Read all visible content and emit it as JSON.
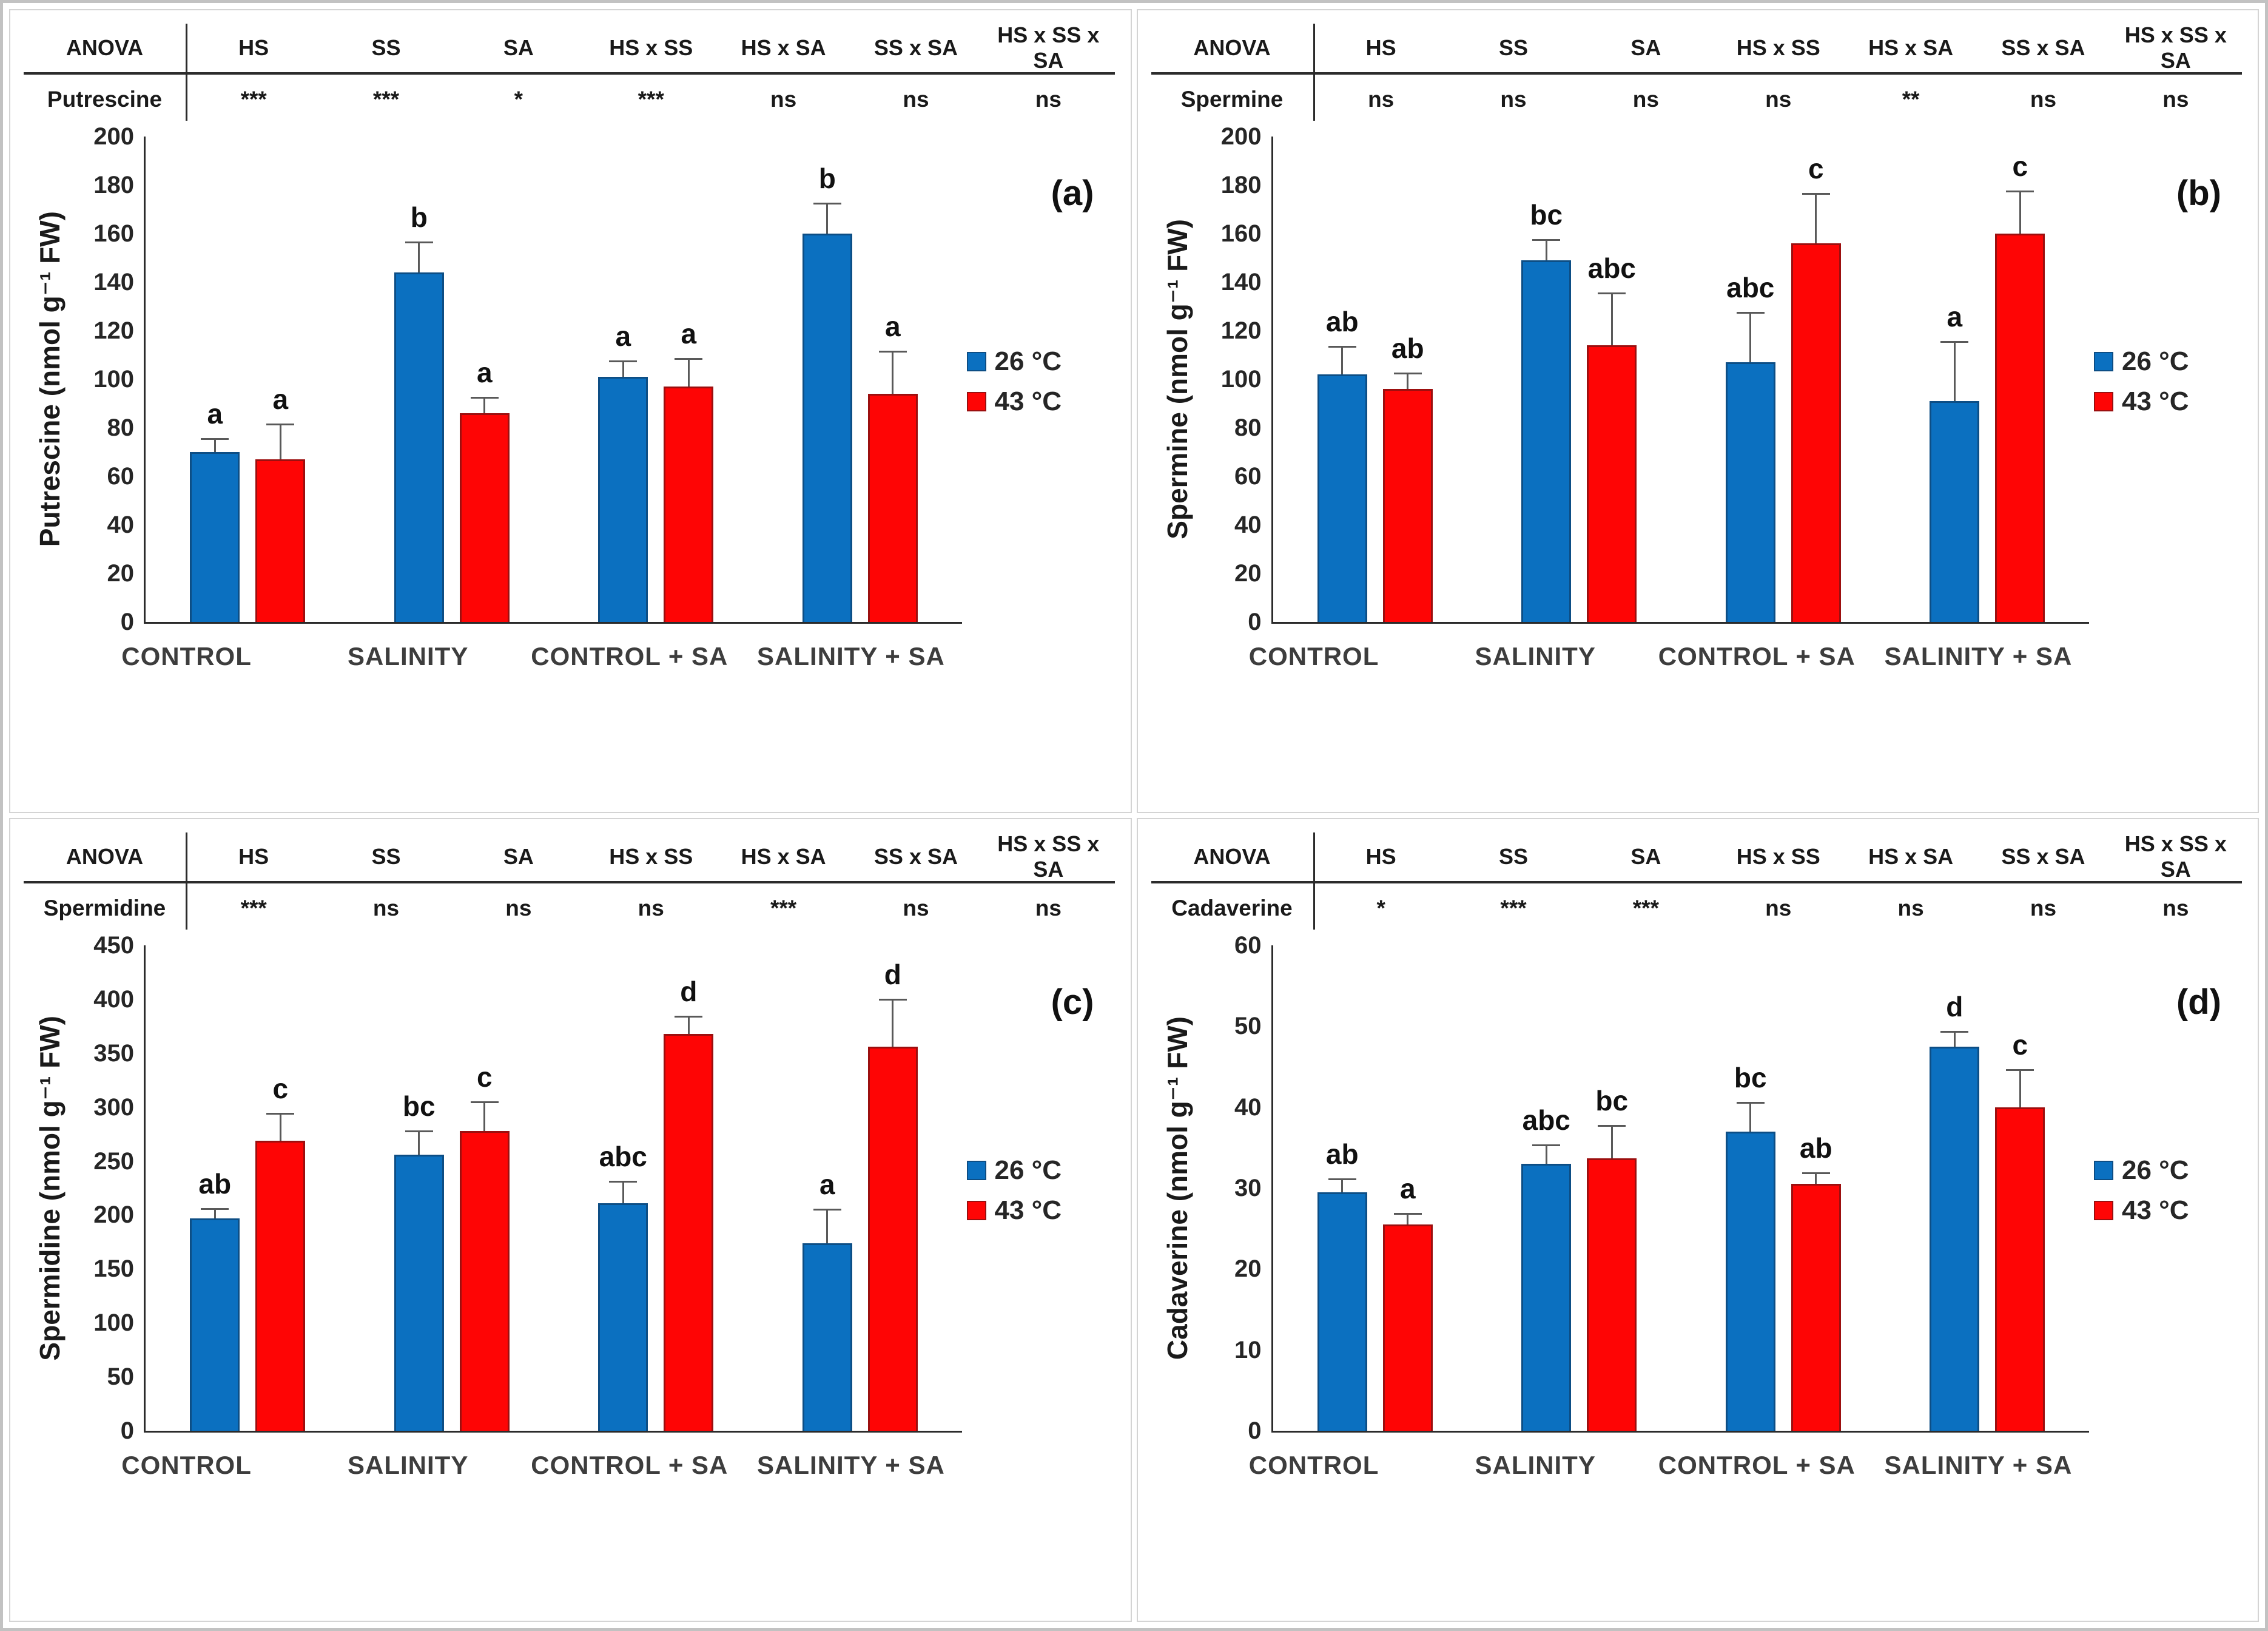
{
  "figure": {
    "anova_label": "ANOVA",
    "anova_factors": [
      "HS",
      "SS",
      "SA",
      "HS x SS",
      "HS x SA",
      "SS x SA",
      "HS x SS x SA"
    ],
    "categories": [
      "CONTROL",
      "SALINITY",
      "CONTROL + SA",
      "SALINITY + SA"
    ],
    "legend_labels": [
      "26 °C",
      "43 °C"
    ],
    "colors": {
      "blue_fill": "#0B70C0",
      "blue_border": "#0d4e85",
      "red_fill": "#FE0505",
      "red_border": "#9c0f0f",
      "error_bar": "#595959",
      "axis": "#2b2b2b"
    }
  },
  "chart_data": [
    {
      "type": "bar",
      "panel_label": "(a)",
      "metabolite": "Putrescine",
      "ylabel": "Putrescine (nmol g⁻¹ FW)",
      "ylim": [
        0,
        200
      ],
      "ytick_step": 20,
      "grid": false,
      "legend_position": "right",
      "categories": [
        "CONTROL",
        "SALINITY",
        "CONTROL + SA",
        "SALINITY + SA"
      ],
      "anova": [
        "***",
        "***",
        "*",
        "***",
        "ns",
        "ns",
        "ns"
      ],
      "series": [
        {
          "name": "26 °C",
          "color": "#0B70C0",
          "border": "#0d4e85",
          "values": [
            70,
            144,
            101,
            160
          ],
          "errors": [
            5,
            12,
            6,
            12
          ],
          "letters": [
            "a",
            "b",
            "a",
            "b"
          ]
        },
        {
          "name": "43 °C",
          "color": "#FE0505",
          "border": "#9c0f0f",
          "values": [
            67,
            86,
            97,
            94
          ],
          "errors": [
            14,
            6,
            11,
            17
          ],
          "letters": [
            "a",
            "a",
            "a",
            "a"
          ]
        }
      ]
    },
    {
      "type": "bar",
      "panel_label": "(b)",
      "metabolite": "Spermine",
      "ylabel": "Spermine (nmol g⁻¹ FW)",
      "ylim": [
        0,
        200
      ],
      "ytick_step": 20,
      "grid": false,
      "legend_position": "right",
      "categories": [
        "CONTROL",
        "SALINITY",
        "CONTROL + SA",
        "SALINITY + SA"
      ],
      "anova": [
        "ns",
        "ns",
        "ns",
        "ns",
        "**",
        "ns",
        "ns"
      ],
      "series": [
        {
          "name": "26 °C",
          "color": "#0B70C0",
          "border": "#0d4e85",
          "values": [
            102,
            149,
            107,
            91
          ],
          "errors": [
            11,
            8,
            20,
            24
          ],
          "letters": [
            "ab",
            "bc",
            "abc",
            "a"
          ]
        },
        {
          "name": "43 °C",
          "color": "#FE0505",
          "border": "#9c0f0f",
          "values": [
            96,
            114,
            156,
            160
          ],
          "errors": [
            6,
            21,
            20,
            17
          ],
          "letters": [
            "ab",
            "abc",
            "c",
            "c"
          ]
        }
      ]
    },
    {
      "type": "bar",
      "panel_label": "(c)",
      "metabolite": "Spermidine",
      "ylabel": "Spermidine (nmol g⁻¹ FW)",
      "ylim": [
        0,
        450
      ],
      "ytick_step": 50,
      "grid": false,
      "legend_position": "right",
      "categories": [
        "CONTROL",
        "SALINITY",
        "CONTROL + SA",
        "SALINITY + SA"
      ],
      "anova": [
        "***",
        "ns",
        "ns",
        "ns",
        "***",
        "ns",
        "ns"
      ],
      "series": [
        {
          "name": "26 °C",
          "color": "#0B70C0",
          "border": "#0d4e85",
          "values": [
            197,
            256,
            211,
            174
          ],
          "errors": [
            8,
            21,
            19,
            30
          ],
          "letters": [
            "ab",
            "bc",
            "abc",
            "a"
          ]
        },
        {
          "name": "43 °C",
          "color": "#FE0505",
          "border": "#9c0f0f",
          "values": [
            269,
            278,
            368,
            356
          ],
          "errors": [
            24,
            26,
            15,
            43
          ],
          "letters": [
            "c",
            "c",
            "d",
            "d"
          ]
        }
      ]
    },
    {
      "type": "bar",
      "panel_label": "(d)",
      "metabolite": "Cadaverine",
      "ylabel": "Cadaverine (nmol g⁻¹ FW)",
      "ylim": [
        0,
        60
      ],
      "ytick_step": 10,
      "grid": false,
      "legend_position": "right",
      "categories": [
        "CONTROL",
        "SALINITY",
        "CONTROL + SA",
        "SALINITY + SA"
      ],
      "anova": [
        "*",
        "***",
        "***",
        "ns",
        "ns",
        "ns",
        "ns"
      ],
      "series": [
        {
          "name": "26 °C",
          "color": "#0B70C0",
          "border": "#0d4e85",
          "values": [
            29.5,
            33,
            37,
            47.5
          ],
          "errors": [
            1.5,
            2.2,
            3.4,
            1.7
          ],
          "letters": [
            "ab",
            "abc",
            "bc",
            "d"
          ]
        },
        {
          "name": "43 °C",
          "color": "#FE0505",
          "border": "#9c0f0f",
          "values": [
            25.5,
            33.7,
            30.5,
            40
          ],
          "errors": [
            1.2,
            3.9,
            1.2,
            4.5
          ],
          "letters": [
            "a",
            "bc",
            "ab",
            "c"
          ]
        }
      ]
    }
  ]
}
